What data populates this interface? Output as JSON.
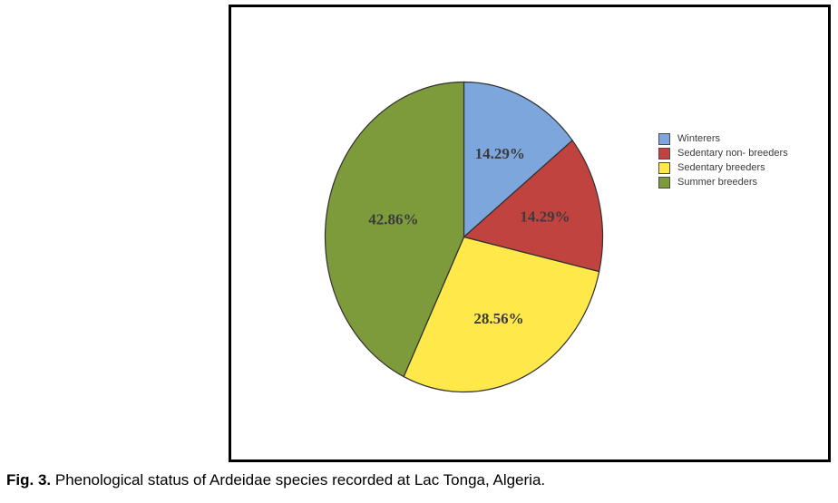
{
  "figure": {
    "caption_prefix": "Fig. 3.",
    "caption_text": "Phenological status of Ardeidae species recorded at Lac Tonga, Algeria."
  },
  "chart_data": {
    "type": "pie",
    "title": "",
    "categories": [
      "Winterers",
      "Sedentary non- breeders",
      "Sedentary breeders",
      "Summer breeders"
    ],
    "values": [
      14.29,
      14.29,
      28.56,
      42.86
    ],
    "slice_labels": [
      "14.29%",
      "14.29%",
      "28.56%",
      "42.86%"
    ],
    "colors": [
      "#7CA6DC",
      "#C0433F",
      "#FFE84A",
      "#7E9B3C"
    ],
    "slice_stroke_color": "#2f2f2f",
    "label_color": "#3b3b3b",
    "start_angle": "12 o'clock",
    "direction": "clockwise",
    "legend_position": "right",
    "frame_border_color": "#000000",
    "background_color": "#ffffff"
  }
}
